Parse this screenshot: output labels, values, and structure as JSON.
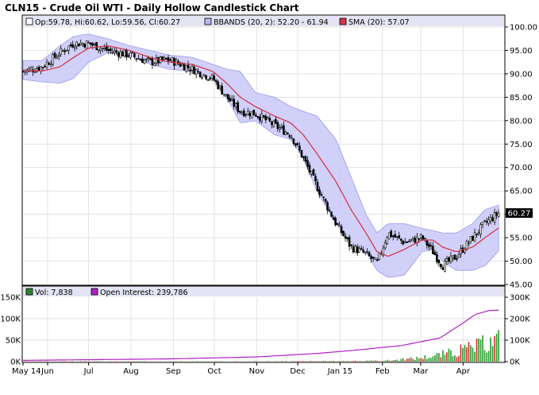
{
  "title": "CLN15 - Crude Oil WTI - Daily Hollow Candlestick Chart",
  "chart_data": [
    {
      "type": "candlestick",
      "name": "price-panel",
      "legend": {
        "ohlc": "Op:59.78, Hi:60.62, Lo:59.56, Cl:60.27",
        "bbands": "BBANDS (20, 2): 52.20 - 61.94",
        "sma": "SMA (20): 57.07"
      },
      "last_price_label": "60.27",
      "last_price": 60.27,
      "ylim": [
        45,
        100
      ],
      "yticks": [
        100,
        95,
        90,
        85,
        80,
        75,
        70,
        65,
        60,
        55,
        50,
        45
      ],
      "ytick_labels": [
        "100.00",
        "95.00",
        "90.00",
        "85.00",
        "80.00",
        "75.00",
        "70.00",
        "65.00",
        "60.00",
        "55.00",
        "50.00",
        "45.00"
      ],
      "series": [
        {
          "name": "Close",
          "x": [
            "2014-05-14",
            "2014-05-28",
            "2014-06-10",
            "2014-06-20",
            "2014-07-01",
            "2014-07-15",
            "2014-07-31",
            "2014-08-15",
            "2014-08-29",
            "2014-09-15",
            "2014-09-30",
            "2014-10-10",
            "2014-10-20",
            "2014-10-31",
            "2014-11-14",
            "2014-11-26",
            "2014-12-05",
            "2014-12-15",
            "2014-12-29",
            "2015-01-09",
            "2015-01-20",
            "2015-01-28",
            "2015-02-05",
            "2015-02-17",
            "2015-03-02",
            "2015-03-10",
            "2015-03-17",
            "2015-03-27",
            "2015-04-08",
            "2015-04-17",
            "2015-04-27"
          ],
          "values": [
            90.5,
            91.5,
            94.5,
            96.5,
            96.5,
            95,
            94,
            92.5,
            93,
            91,
            89,
            85,
            82,
            81.5,
            79,
            77,
            72,
            66,
            58,
            53,
            51.5,
            49.5,
            56,
            54,
            55,
            52,
            49,
            51,
            55,
            58,
            60.27
          ]
        },
        {
          "name": "SMA (20)",
          "x": [
            "2014-05-14",
            "2014-05-28",
            "2014-06-10",
            "2014-06-20",
            "2014-07-01",
            "2014-07-15",
            "2014-07-31",
            "2014-08-15",
            "2014-08-29",
            "2014-09-15",
            "2014-09-30",
            "2014-10-10",
            "2014-10-20",
            "2014-10-31",
            "2014-11-14",
            "2014-11-26",
            "2014-12-05",
            "2014-12-15",
            "2014-12-29",
            "2015-01-09",
            "2015-01-20",
            "2015-01-28",
            "2015-02-05",
            "2015-02-17",
            "2015-03-02",
            "2015-03-10",
            "2015-03-17",
            "2015-03-27",
            "2015-04-08",
            "2015-04-17",
            "2015-04-27"
          ],
          "values": [
            90.8,
            90.6,
            91.5,
            93.5,
            95.5,
            96,
            95,
            93.5,
            92.5,
            92,
            90.5,
            88,
            85,
            83,
            81,
            79.5,
            77,
            73,
            67,
            61,
            56,
            52,
            51,
            52.5,
            54.5,
            54.5,
            53,
            52,
            53,
            55,
            57.07
          ]
        },
        {
          "name": "BBANDS upper",
          "x": [
            "2014-05-14",
            "2014-05-28",
            "2014-06-10",
            "2014-06-20",
            "2014-07-01",
            "2014-07-15",
            "2014-07-31",
            "2014-08-15",
            "2014-08-29",
            "2014-09-15",
            "2014-09-30",
            "2014-10-10",
            "2014-10-20",
            "2014-10-31",
            "2014-11-14",
            "2014-11-26",
            "2014-12-05",
            "2014-12-15",
            "2014-12-29",
            "2015-01-09",
            "2015-01-20",
            "2015-01-28",
            "2015-02-05",
            "2015-02-17",
            "2015-03-02",
            "2015-03-10",
            "2015-03-17",
            "2015-03-27",
            "2015-04-08",
            "2015-04-17",
            "2015-04-27"
          ],
          "values": [
            92.8,
            92.8,
            96,
            98,
            98.5,
            97.5,
            96,
            95,
            94,
            93.5,
            92,
            91,
            90.5,
            86,
            85,
            83,
            82,
            81,
            76,
            68,
            60,
            56,
            58,
            58,
            57,
            56.5,
            56,
            56,
            58,
            61,
            61.94
          ]
        },
        {
          "name": "BBANDS lower",
          "x": [
            "2014-05-14",
            "2014-05-28",
            "2014-06-10",
            "2014-06-20",
            "2014-07-01",
            "2014-07-15",
            "2014-07-31",
            "2014-08-15",
            "2014-08-29",
            "2014-09-15",
            "2014-09-30",
            "2014-10-10",
            "2014-10-20",
            "2014-10-31",
            "2014-11-14",
            "2014-11-26",
            "2014-12-05",
            "2014-12-15",
            "2014-12-29",
            "2015-01-09",
            "2015-01-20",
            "2015-01-28",
            "2015-02-05",
            "2015-02-17",
            "2015-03-02",
            "2015-03-10",
            "2015-03-17",
            "2015-03-27",
            "2015-04-08",
            "2015-04-17",
            "2015-04-27"
          ],
          "values": [
            88.8,
            88.3,
            88,
            89,
            92.5,
            94.5,
            94,
            92,
            91,
            90.5,
            89,
            85,
            79.5,
            80,
            77,
            76,
            72,
            65,
            58,
            54,
            52,
            48,
            46.5,
            47,
            52,
            52.5,
            50,
            48,
            48,
            49,
            52.2
          ]
        }
      ]
    },
    {
      "type": "bar",
      "name": "volume-panel",
      "legend": {
        "volume": "Vol: 7,838",
        "open_interest": "Open Interest: 239,786"
      },
      "ylim_left": [
        0,
        150000
      ],
      "yticks_left": [
        0,
        50000,
        100000,
        150000
      ],
      "ytick_labels_left": [
        "0K",
        "50K",
        "100K",
        "150K"
      ],
      "ylim_right": [
        0,
        300000
      ],
      "yticks_right": [
        0,
        100000,
        200000,
        300000
      ],
      "ytick_labels_right": [
        "0K",
        "100K",
        "200K",
        "300K"
      ],
      "xtick_labels": [
        "May 14",
        "Jun",
        "Jul",
        "Aug",
        "Sep",
        "Oct",
        "Nov",
        "Dec",
        "Jan 15",
        "Feb",
        "Mar",
        "Apr"
      ],
      "xticks": [
        "2014-05-14",
        "2014-06-01",
        "2014-07-01",
        "2014-08-01",
        "2014-09-01",
        "2014-10-01",
        "2014-11-01",
        "2014-12-01",
        "2015-01-01",
        "2015-02-01",
        "2015-03-01",
        "2015-04-01"
      ],
      "series": [
        {
          "name": "Open Interest",
          "x": [
            "2014-05-14",
            "2014-07-01",
            "2014-09-01",
            "2014-11-01",
            "2014-12-15",
            "2015-01-15",
            "2015-02-15",
            "2015-03-15",
            "2015-04-01",
            "2015-04-10",
            "2015-04-20",
            "2015-04-27"
          ],
          "values": [
            6000,
            9000,
            13000,
            22000,
            38000,
            55000,
            75000,
            110000,
            180000,
            220000,
            238000,
            239786
          ]
        }
      ]
    }
  ]
}
